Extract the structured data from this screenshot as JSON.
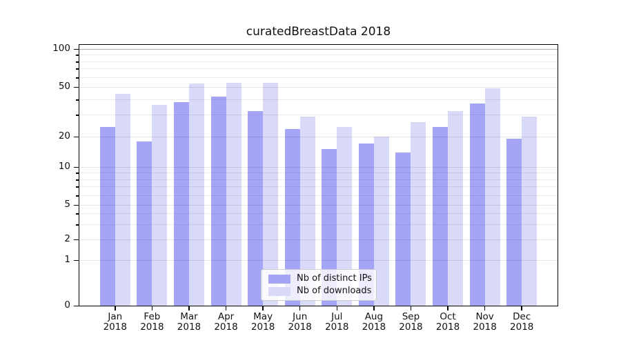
{
  "chart_data": {
    "type": "bar",
    "title": "curatedBreastData 2018",
    "categories": [
      "Jan",
      "Feb",
      "Mar",
      "Apr",
      "May",
      "Jun",
      "Jul",
      "Aug",
      "Sep",
      "Oct",
      "Nov",
      "Dec"
    ],
    "year": "2018",
    "series": [
      {
        "name": "Nb of distinct IPs",
        "color": "#a5a5f7",
        "values": [
          24,
          18,
          38,
          42,
          32,
          23,
          15,
          17,
          14,
          24,
          37,
          19
        ]
      },
      {
        "name": "Nb of downloads",
        "color": "#d9d9f8",
        "values": [
          44,
          36,
          53,
          54,
          54,
          29,
          24,
          20,
          26,
          32,
          49,
          29
        ]
      }
    ],
    "xlabel": "",
    "ylabel": "",
    "yticks": [
      0,
      1,
      2,
      5,
      10,
      20,
      50,
      100
    ],
    "minor_gridlines": [
      3,
      4,
      6,
      7,
      8,
      9,
      30,
      40,
      60,
      70,
      80,
      90
    ],
    "scale": "symlog",
    "ylim": [
      0,
      115
    ],
    "grid": true,
    "legend_position": "lower center"
  }
}
